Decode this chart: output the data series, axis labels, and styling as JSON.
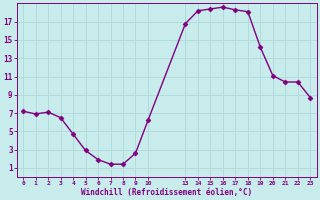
{
  "x": [
    0,
    1,
    2,
    3,
    4,
    5,
    6,
    7,
    8,
    9,
    10,
    13,
    14,
    15,
    16,
    17,
    18,
    19,
    20,
    21,
    22,
    23
  ],
  "y": [
    7.2,
    6.9,
    7.1,
    6.5,
    4.7,
    2.9,
    1.9,
    1.4,
    1.4,
    2.6,
    6.2,
    16.8,
    18.2,
    18.4,
    18.6,
    18.3,
    18.1,
    14.2,
    11.1,
    10.4,
    10.4,
    8.7
  ],
  "line_color": "#800080",
  "marker": "D",
  "markersize": 2.5,
  "linewidth": 1.0,
  "bg_color": "#c8ecec",
  "grid_color": "#aadddd",
  "tick_color": "#800080",
  "label_color": "#800080",
  "xlabel": "Windchill (Refroidissement éolien,°C)",
  "xticks": [
    0,
    1,
    2,
    3,
    4,
    5,
    6,
    7,
    8,
    9,
    10,
    13,
    14,
    15,
    16,
    17,
    18,
    19,
    20,
    21,
    22,
    23
  ],
  "yticks": [
    1,
    3,
    5,
    7,
    9,
    11,
    13,
    15,
    17
  ],
  "ylim": [
    0.0,
    19.0
  ],
  "xlim": [
    -0.5,
    23.5
  ],
  "title": ""
}
